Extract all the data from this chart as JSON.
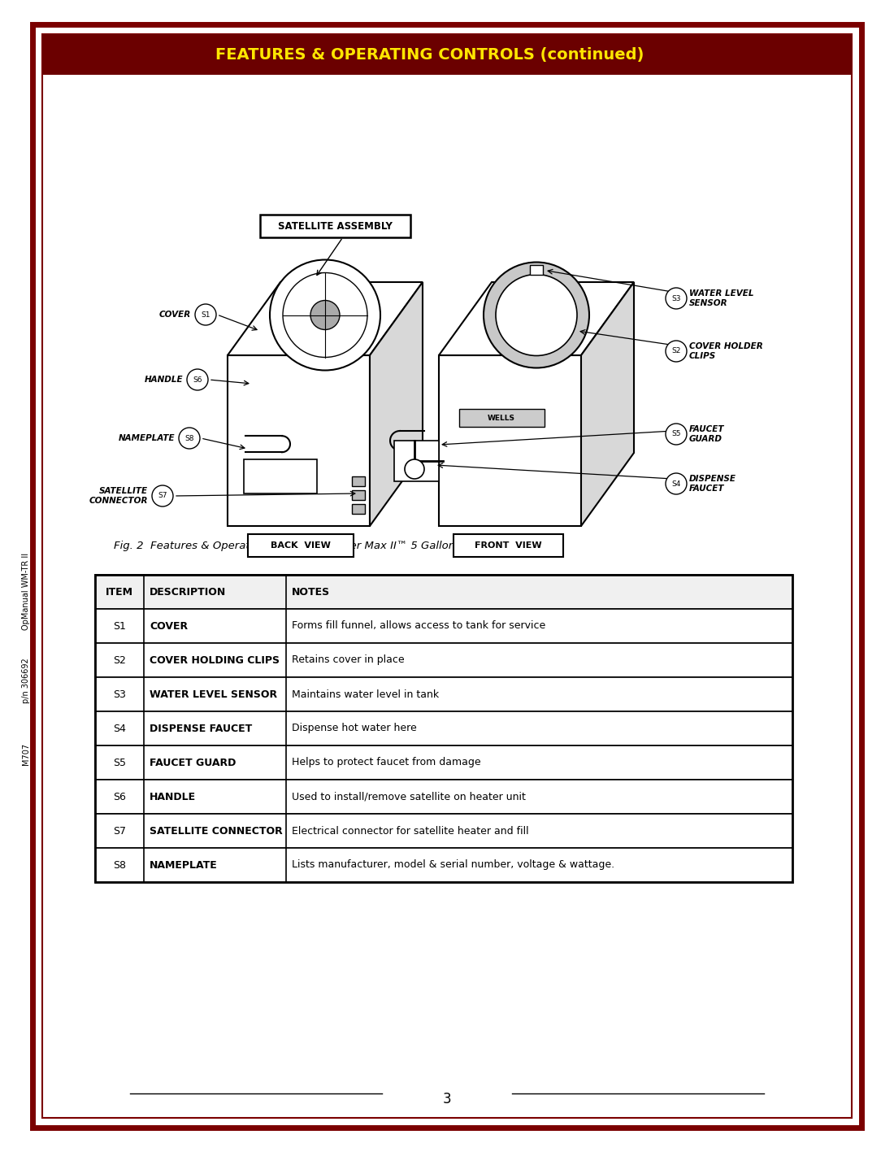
{
  "title": "FEATURES & OPERATING CONTROLS (continued)",
  "title_color": "#FFE600",
  "header_bg": "#6B0000",
  "border_color": "#7B0000",
  "page_number": "3",
  "fig_caption": "Fig. 2  Features & Operating Controls -  Water Max II™ 5 Gallon Satellite",
  "sidebar_texts": [
    "M707",
    "p/n 306692",
    "OpManual WM-TR II"
  ],
  "table_headers": [
    "ITEM",
    "DESCRIPTION",
    "NOTES"
  ],
  "table_rows": [
    [
      "S1",
      "COVER",
      "Forms fill funnel, allows access to tank for service"
    ],
    [
      "S2",
      "COVER HOLDING CLIPS",
      "Retains cover in place"
    ],
    [
      "S3",
      "WATER LEVEL SENSOR",
      "Maintains water level in tank"
    ],
    [
      "S4",
      "DISPENSE FAUCET",
      "Dispense hot water here"
    ],
    [
      "S5",
      "FAUCET GUARD",
      "Helps to protect faucet from damage"
    ],
    [
      "S6",
      "HANDLE",
      "Used to install/remove satellite on heater unit"
    ],
    [
      "S7",
      "SATELLITE CONNECTOR",
      "Electrical connector for satellite heater and fill"
    ],
    [
      "S8",
      "NAMEPLATE",
      "Lists manufacturer, model & serial number, voltage & wattage."
    ]
  ]
}
